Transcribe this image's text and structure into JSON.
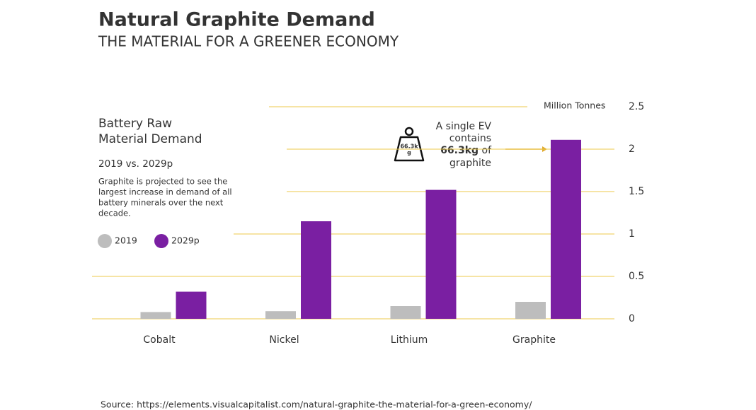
{
  "chart_data": {
    "type": "bar",
    "title": "Natural Graphite Demand",
    "subtitle": "THE MATERIAL FOR A GREENER ECONOMY",
    "panel_title": [
      "Battery Raw",
      "Material Demand"
    ],
    "panel_period": "2019 vs. 2029p",
    "panel_text": [
      "Graphite is projected to see the",
      "largest increase in demand of all",
      "battery minerals over the next",
      "decade."
    ],
    "y_axis_label": "Million Tonnes",
    "annotation": {
      "lines": [
        "A single EV",
        "contains"
      ],
      "bold": "66.3kg",
      "after_bold": " of",
      "last": "graphite",
      "icon_label": [
        "66.3k",
        "g"
      ]
    },
    "categories": [
      "Cobalt",
      "Nickel",
      "Lithium",
      "Graphite"
    ],
    "series": [
      {
        "name": "2019",
        "color": "#bdbdbd",
        "values": [
          0.08,
          0.09,
          0.15,
          0.2
        ]
      },
      {
        "name": "2029p",
        "color": "#7a1fa2",
        "values": [
          0.32,
          1.15,
          1.52,
          2.11
        ]
      }
    ],
    "ylim": [
      0,
      2.5
    ],
    "yticks": [
      0,
      0.5,
      1,
      1.5,
      2,
      2.5
    ],
    "grid": true,
    "grid_color": "#ecc94b",
    "source": "Source: https://elements.visualcapitalist.com/natural-graphite-the-material-for-a-green-economy/"
  }
}
